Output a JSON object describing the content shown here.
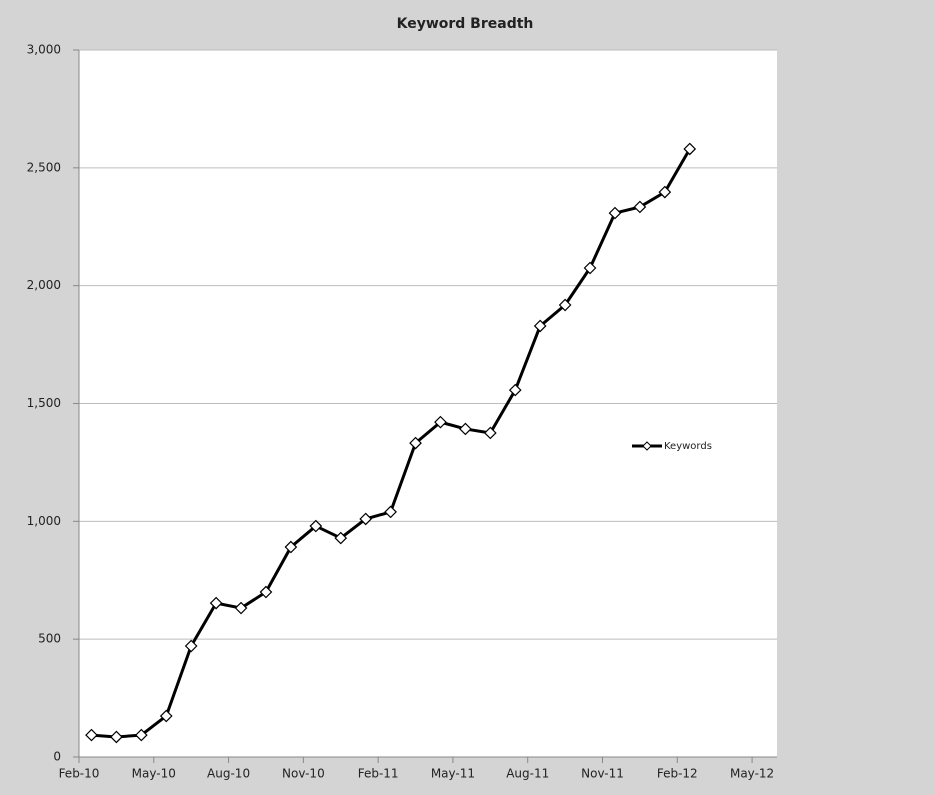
{
  "chart_data": {
    "type": "line",
    "title": "Keyword Breadth",
    "x": [
      "2010-02",
      "2010-03",
      "2010-04",
      "2010-05",
      "2010-06",
      "2010-07",
      "2010-08",
      "2010-09",
      "2010-10",
      "2010-11",
      "2010-12",
      "2011-01",
      "2011-02",
      "2011-03",
      "2011-04",
      "2011-05",
      "2011-06",
      "2011-07",
      "2011-08",
      "2011-09",
      "2011-10",
      "2011-11",
      "2011-12",
      "2012-01",
      "2012-02"
    ],
    "series": [
      {
        "name": "Keywords",
        "color": "#000000",
        "values": [
          93,
          85,
          93,
          174,
          471,
          653,
          632,
          700,
          891,
          980,
          929,
          1010,
          1040,
          1332,
          1421,
          1392,
          1375,
          1557,
          1829,
          1918,
          2075,
          2308,
          2334,
          2397,
          2580
        ]
      }
    ],
    "xlim": [
      "2010-02",
      "2012-06"
    ],
    "xticks": [
      {
        "value": "2010-02",
        "label": "Feb-10"
      },
      {
        "value": "2010-05",
        "label": "May-10"
      },
      {
        "value": "2010-08",
        "label": "Aug-10"
      },
      {
        "value": "2010-11",
        "label": "Nov-10"
      },
      {
        "value": "2011-02",
        "label": "Feb-11"
      },
      {
        "value": "2011-05",
        "label": "May-11"
      },
      {
        "value": "2011-08",
        "label": "Aug-11"
      },
      {
        "value": "2011-11",
        "label": "Nov-11"
      },
      {
        "value": "2012-02",
        "label": "Feb-12"
      },
      {
        "value": "2012-05",
        "label": "May-12"
      }
    ],
    "ylim": [
      0,
      3000
    ],
    "yticks": [
      0,
      500,
      {
        "value": 1000,
        "label": "1,000"
      },
      {
        "value": 1500,
        "label": "1,500"
      },
      {
        "value": 2000,
        "label": "2,000"
      },
      {
        "value": 2500,
        "label": "2,500"
      },
      {
        "value": 3000,
        "label": "3,000"
      }
    ],
    "grid": true,
    "legend": "right"
  }
}
